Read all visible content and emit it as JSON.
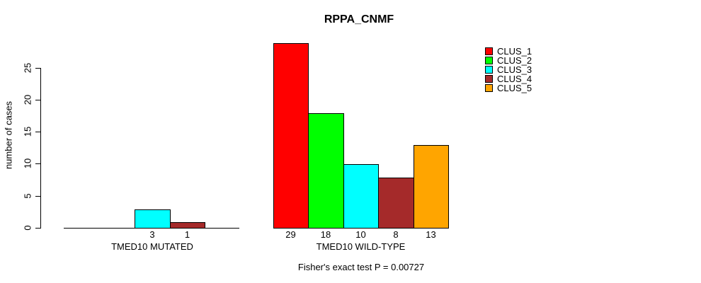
{
  "chart_data": {
    "type": "bar",
    "title": "RPPA_CNMF",
    "ylabel": "number of cases",
    "xlabel": "",
    "yticks": [
      0,
      5,
      10,
      15,
      20,
      25
    ],
    "ylim": [
      0,
      29
    ],
    "grid": false,
    "legend_position": "top-right",
    "series_labels": [
      "CLUS_1",
      "CLUS_2",
      "CLUS_3",
      "CLUS_4",
      "CLUS_5"
    ],
    "colors": [
      "#ff0000",
      "#00ff00",
      "#00ffff",
      "#a52a2a",
      "#ffa500"
    ],
    "groups": [
      {
        "label": "TMED10 MUTATED",
        "values": [
          0,
          0,
          3,
          1,
          0
        ],
        "bar_labels": [
          "",
          "",
          "3",
          "1",
          ""
        ]
      },
      {
        "label": "TMED10 WILD-TYPE",
        "values": [
          29,
          18,
          10,
          8,
          13
        ],
        "bar_labels": [
          "29",
          "18",
          "10",
          "8",
          "13"
        ]
      }
    ],
    "annotation": "Fisher's exact test P = 0.00727"
  },
  "colors": {
    "axis": "#000000",
    "text": "#000000",
    "background": "#ffffff"
  }
}
